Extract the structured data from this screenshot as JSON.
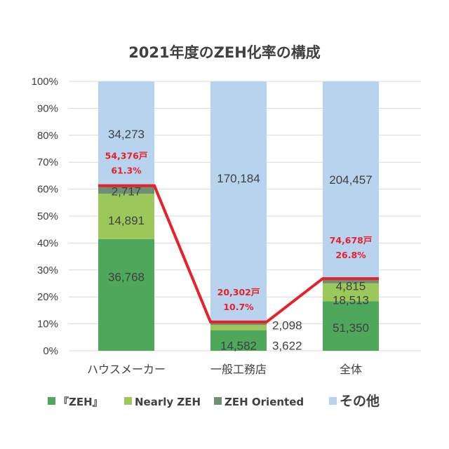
{
  "chart_data": {
    "type": "bar",
    "stacked": true,
    "normalized": true,
    "title": "2021年度のZEH化率の構成",
    "categories": [
      "ハウスメーカー",
      "一般工務店",
      "全体"
    ],
    "y_ticks": [
      "0%",
      "10%",
      "20%",
      "30%",
      "40%",
      "50%",
      "60%",
      "70%",
      "80%",
      "90%",
      "100%"
    ],
    "ylim": [
      0,
      100
    ],
    "grid": true,
    "legend_position": "bottom",
    "series": [
      {
        "name": "『ZEH』",
        "color": "#4ea75a",
        "values": [
          36768,
          14582,
          51350
        ],
        "labels": [
          "36,768",
          "14,582",
          "51,350"
        ]
      },
      {
        "name": "Nearly ZEH",
        "color": "#9bc75b",
        "values": [
          14891,
          3622,
          18513
        ],
        "labels": [
          "14,891",
          "3,622",
          "18,513"
        ]
      },
      {
        "name": "ZEH Oriented",
        "color": "#6f8f72",
        "values": [
          2717,
          2098,
          4815
        ],
        "labels": [
          "2,717",
          "2,098",
          "4,815"
        ]
      },
      {
        "name": "その他",
        "color": "#b8d3ed",
        "values": [
          34273,
          170184,
          204457
        ],
        "labels": [
          "34,273",
          "170,184",
          "204,457"
        ]
      }
    ],
    "zeh_totals": [
      {
        "count": "54,376戸",
        "rate": "61.3%",
        "rate_value": 61.3
      },
      {
        "count": "20,302戸",
        "rate": "10.7%",
        "rate_value": 10.7
      },
      {
        "count": "74,678戸",
        "rate": "26.8%",
        "rate_value": 26.8
      }
    ],
    "line_color": "#e8202a"
  }
}
